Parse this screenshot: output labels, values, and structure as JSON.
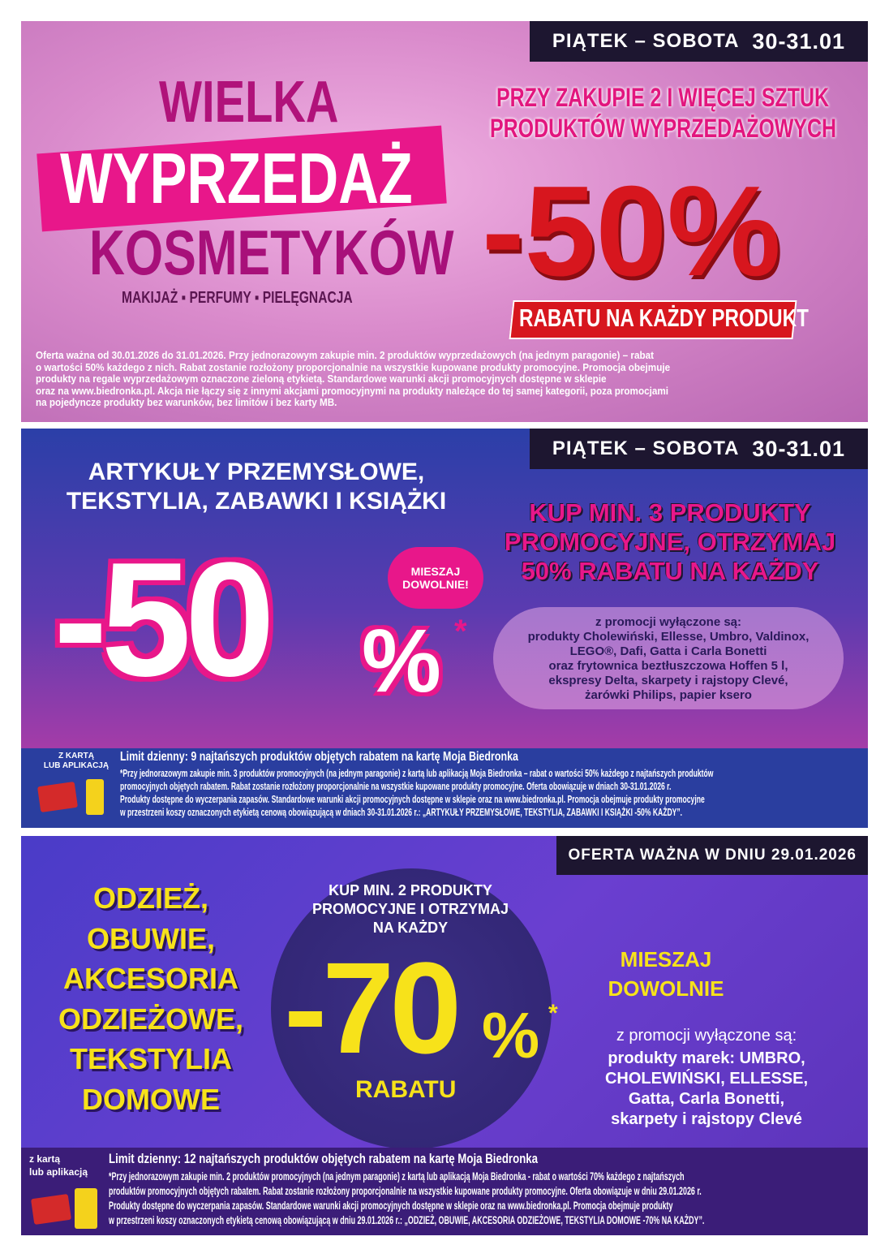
{
  "panel1": {
    "date_days": "PIĄTEK – SOBOTA",
    "date_range": "30-31.01",
    "title_line1": "WIELKA",
    "title_line2": "WYPRZEDAŻ",
    "title_line3": "KOSMETYKÓW",
    "categories": "MAKIJAŻ ▪ PERFUMY ▪ PIELĘGNACJA",
    "condition_line1": "PRZY ZAKUPIE 2 I WIĘCEJ SZTUK",
    "condition_line2": "PRODUKTÓW WYPRZEDAŻOWYCH",
    "discount": "-50%",
    "discount_label": "RABATU NA KAŻDY PRODUKT",
    "fine_print": [
      "Oferta ważna od 30.01.2026 do 31.01.2026. Przy jednorazowym zakupie min. 2 produktów wyprzedażowych (na jednym paragonie) – rabat",
      "o wartości 50% każdego z nich. Rabat zostanie rozłożony proporcjonalnie na wszystkie kupowane produkty promocyjne. Promocja obejmuje",
      "produkty na regale wyprzedażowym oznaczone zieloną etykietą. Standardowe warunki akcji promocyjnych dostępne w sklepie",
      "oraz na www.biedronka.pl. Akcja nie łączy się z innymi akcjami promocyjnymi na produkty należące do tej samej kategorii, poza promocjami",
      "na pojedyncze produkty bez warunków, bez limitów i bez karty MB."
    ]
  },
  "panel2": {
    "date_days": "PIĄTEK – SOBOTA",
    "date_range": "30-31.01",
    "title_line1": "ARTYKUŁY PRZEMYSŁOWE,",
    "title_line2": "TEKSTYLIA, ZABAWKI I KSIĄŻKI",
    "discount_number": "-50",
    "discount_percent": "%",
    "asterisk": "*",
    "mix_badge_line1": "MIESZAJ",
    "mix_badge_line2": "DOWOLNIE!",
    "condition": [
      "KUP MIN. 3 PRODUKTY",
      "PROMOCYJNE, OTRZYMAJ",
      "50% RABATU NA KAŻDY"
    ],
    "exclusions": [
      "z promocji wyłączone są:",
      "produkty Cholewiński, Ellesse, Umbro, Valdinox,",
      "LEGO®, Dafi, Gatta i Carla Bonetti",
      "oraz frytownica beztłuszczowa Hoffen 5 l,",
      "ekspresy Delta, skarpety i rajstopy Clevé,",
      "żarówki Philips, papier ksero"
    ],
    "card_label_line1": "Z KARTĄ",
    "card_label_line2": "LUB APLIKACJĄ",
    "limit": "Limit dzienny: 9 najtańszych produktów objętych rabatem na kartę Moja Biedronka",
    "fine_print": [
      "*Przy jednorazowym zakupie min. 3 produktów promocyjnych (na jednym paragonie) z kartą lub aplikacją Moja Biedronka – rabat o wartości 50% każdego z najtańszych produktów",
      "promocyjnych objętych rabatem. Rabat zostanie rozłożony proporcjonalnie na wszystkie kupowane produkty promocyjne. Oferta obowiązuje w dniach 30-31.01.2026 r.",
      "Produkty dostępne do wyczerpania zapasów. Standardowe warunki akcji promocyjnych dostępne w sklepie oraz na www.biedronka.pl. Promocja obejmuje produkty promocyjne",
      "w przestrzeni koszy oznaczonych etykietą cenową obowiązującą w dniach 30-31.01.2026 r.: „ARTYKUŁY PRZEMYSŁOWE, TEKSTYLIA, ZABAWKI I KSIĄŻKI -50% KAŻDY”."
    ]
  },
  "panel3": {
    "date_text": "OFERTA WAŻNA W DNIU 29.01.2026",
    "title": [
      "ODZIEŻ,",
      "OBUWIE,",
      "AKCESORIA",
      "ODZIEŻOWE,",
      "TEKSTYLIA",
      "DOMOWE"
    ],
    "circle_text": [
      "KUP MIN. 2 PRODUKTY",
      "PROMOCYJNE I OTRZYMAJ",
      "NA KAŻDY"
    ],
    "discount_number": "-70",
    "discount_percent": "%",
    "asterisk": "*",
    "discount_label": "RABATU",
    "mix_line1": "MIESZAJ",
    "mix_line2": "DOWOLNIE",
    "exclusions_header": "z promocji wyłączone są:",
    "exclusions": [
      "produkty marek: UMBRO,",
      "CHOLEWIŃSKI, ELLESSE,",
      "Gatta, Carla Bonetti,",
      "skarpety i rajstopy Clevé"
    ],
    "card_label_line1": "z kartą",
    "card_label_line2": "lub aplikacją",
    "limit": "Limit dzienny: 12 najtańszych produktów objętych rabatem na kartę Moja Biedronka",
    "fine_print": [
      "*Przy jednorazowym zakupie min. 2 produktów promocyjnych (na jednym paragonie) z kartą lub aplikacją Moja Biedronka - rabat o wartości 70% każdego z najtańszych",
      "produktów promocyjnych objętych rabatem. Rabat zostanie rozłożony proporcjonalnie na wszystkie kupowane produkty promocyjne. Oferta obowiązuje w dniu 29.01.2026 r.",
      "Produkty dostępne do wyczerpania zapasów. Standardowe warunki akcji promocyjnych dostępne w sklepie oraz na www.biedronka.pl. Promocja obejmuje produkty",
      "w przestrzeni koszy oznaczonych etykietą cenową obowiązującą w dniu 29.01.2026 r.: „ODZIEŻ, OBUWIE, AKCESORIA ODZIEŻOWE, TEKSTYLIA DOMOWE -70% NA KAŻDY”."
    ]
  },
  "colors": {
    "magenta": "#e0147f",
    "red": "#d7161e",
    "yellow": "#f7e21a",
    "dark": "#1d1630"
  }
}
